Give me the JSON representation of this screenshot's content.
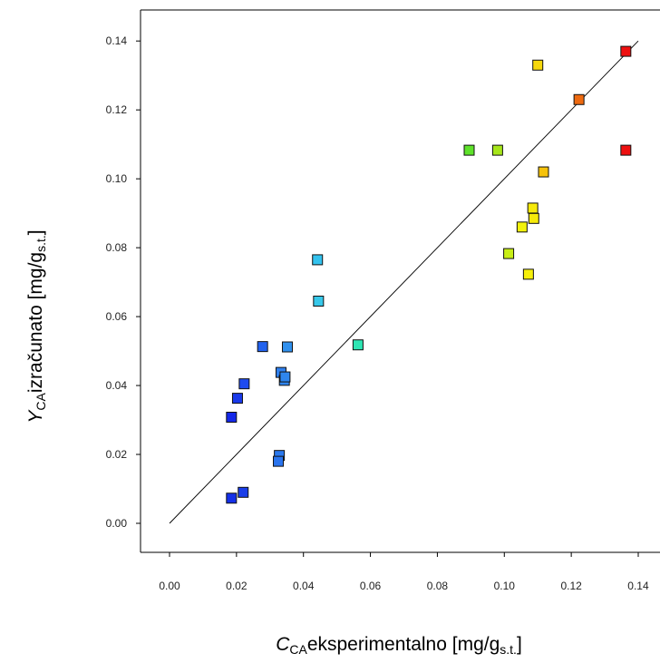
{
  "chart_data": {
    "type": "scatter",
    "xlabel": {
      "main": "C",
      "sub": "CA",
      "rest": "eksperimentalno [mg/g",
      "sub2": "s.t.",
      "end": "]"
    },
    "ylabel": {
      "main": "Y",
      "sub": "CA",
      "rest": "izračunato [mg/g",
      "sub2": "s.t.",
      "end": "]"
    },
    "xlim": [
      -0.0085,
      0.14
    ],
    "ylim": [
      -0.0085,
      0.147
    ],
    "x_ticks": [
      "0.00",
      "0.02",
      "0.04",
      "0.06",
      "0.08",
      "0.10",
      "0.12",
      "0.14"
    ],
    "y_ticks": [
      "0.00",
      "0.02",
      "0.04",
      "0.06",
      "0.08",
      "0.10",
      "0.12",
      "0.14"
    ],
    "reference_line": {
      "from": [
        0,
        0
      ],
      "to": [
        0.14,
        0.14
      ]
    },
    "grid": false,
    "legend": "none",
    "points": [
      {
        "x": 0.0185,
        "y": 0.0073,
        "color": "#1430e8"
      },
      {
        "x": 0.022,
        "y": 0.009,
        "color": "#1a3ee8"
      },
      {
        "x": 0.0185,
        "y": 0.0308,
        "color": "#1428e8"
      },
      {
        "x": 0.0203,
        "y": 0.0363,
        "color": "#1a3aea"
      },
      {
        "x": 0.0223,
        "y": 0.0405,
        "color": "#1f4bf0"
      },
      {
        "x": 0.0278,
        "y": 0.0513,
        "color": "#2262ee"
      },
      {
        "x": 0.0328,
        "y": 0.0197,
        "color": "#2a78ee"
      },
      {
        "x": 0.0325,
        "y": 0.018,
        "color": "#2a74ee"
      },
      {
        "x": 0.0333,
        "y": 0.0438,
        "color": "#2f80ee"
      },
      {
        "x": 0.0343,
        "y": 0.0415,
        "color": "#2f84ee"
      },
      {
        "x": 0.0345,
        "y": 0.0425,
        "color": "#2f86ee"
      },
      {
        "x": 0.0352,
        "y": 0.0512,
        "color": "#3090ee"
      },
      {
        "x": 0.0442,
        "y": 0.0765,
        "color": "#33c2ee"
      },
      {
        "x": 0.0445,
        "y": 0.0645,
        "color": "#37c8ea"
      },
      {
        "x": 0.0563,
        "y": 0.0518,
        "color": "#2ee6b4"
      },
      {
        "x": 0.0895,
        "y": 0.1083,
        "color": "#5ee22a"
      },
      {
        "x": 0.098,
        "y": 0.1083,
        "color": "#a6e61a"
      },
      {
        "x": 0.1013,
        "y": 0.0783,
        "color": "#c8ee16"
      },
      {
        "x": 0.1053,
        "y": 0.086,
        "color": "#f2f20c"
      },
      {
        "x": 0.1072,
        "y": 0.0723,
        "color": "#f6f00a"
      },
      {
        "x": 0.1085,
        "y": 0.0915,
        "color": "#f6ea0a"
      },
      {
        "x": 0.1088,
        "y": 0.0885,
        "color": "#f6ea0a"
      },
      {
        "x": 0.11,
        "y": 0.133,
        "color": "#f6d80c"
      },
      {
        "x": 0.1117,
        "y": 0.102,
        "color": "#f6c20a"
      },
      {
        "x": 0.1223,
        "y": 0.123,
        "color": "#ee6a10"
      },
      {
        "x": 0.1363,
        "y": 0.137,
        "color": "#ee1010"
      },
      {
        "x": 0.1363,
        "y": 0.1083,
        "color": "#ee1010"
      }
    ]
  }
}
